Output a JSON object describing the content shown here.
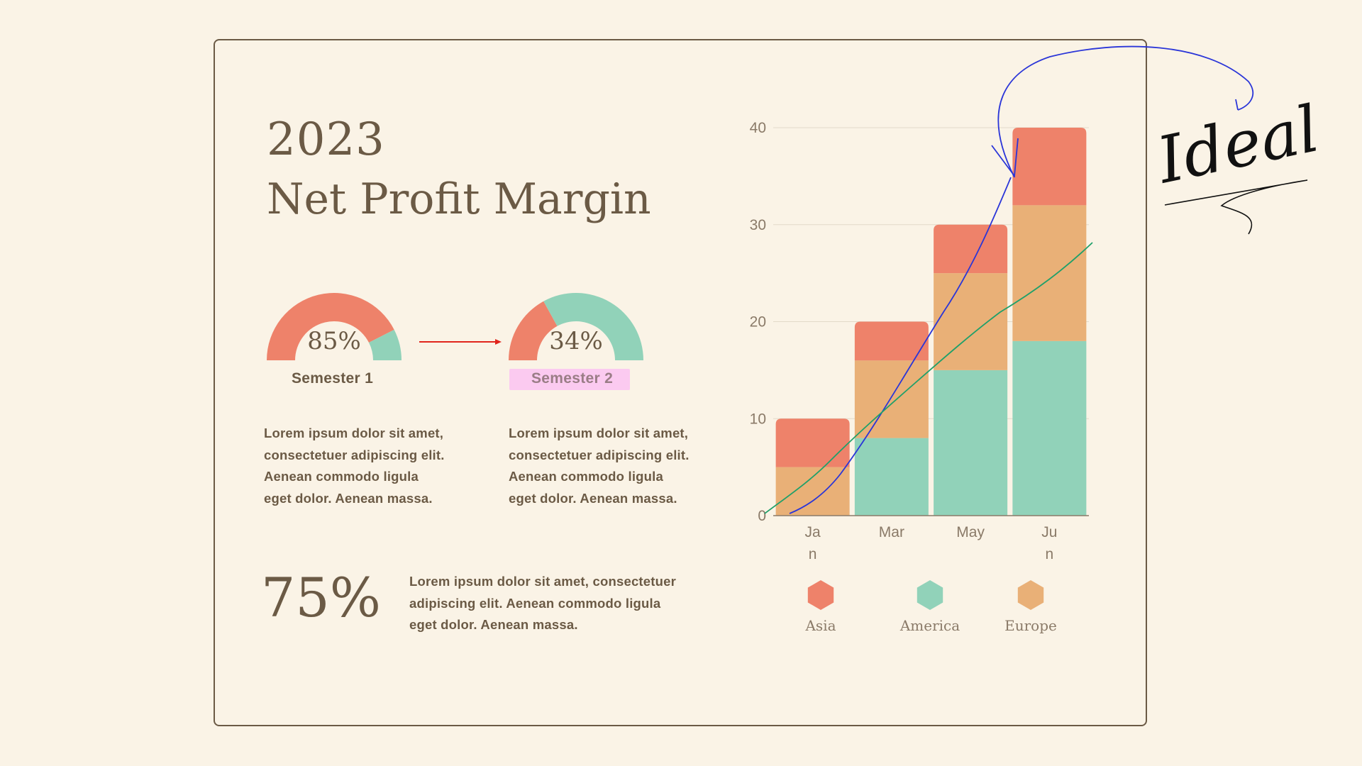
{
  "heading": {
    "year": "2023",
    "title": "Net Profit Margin"
  },
  "gauges": [
    {
      "value_label": "85%",
      "value": 85,
      "label": "Semester 1"
    },
    {
      "value_label": "34%",
      "value": 34,
      "label": "Semester 2"
    }
  ],
  "paragraphs": {
    "p1": [
      "Lorem ipsum dolor sit amet,",
      "consectetuer adipiscing elit.",
      "Aenean commodo ligula",
      "eget dolor. Aenean massa."
    ],
    "p2": [
      "Lorem ipsum dolor sit amet,",
      "consectetuer adipiscing elit.",
      "Aenean commodo ligula",
      "eget dolor. Aenean massa."
    ],
    "p3": [
      "Lorem ipsum dolor sit amet, consectetuer",
      "adipiscing elit. Aenean commodo ligula",
      "eget dolor. Aenean massa."
    ]
  },
  "big_stat": "75%",
  "annotation": "Ideal",
  "colors": {
    "asia": "#ee826a",
    "america": "#91d2b9",
    "europe": "#e9b077",
    "text": "#6b5a45",
    "green_line": "#1fa06a",
    "blue_line": "#2a35d8",
    "highlight": "#fbcaf0"
  },
  "chart_data": {
    "type": "bar",
    "stacked": true,
    "categories": [
      "Jan",
      "Mar",
      "May",
      "Jun"
    ],
    "category_labels": [
      [
        "Ja",
        "n"
      ],
      [
        "Mar"
      ],
      [
        "May"
      ],
      [
        "Ju",
        "n"
      ]
    ],
    "series": [
      {
        "name": "America",
        "values": [
          0,
          8,
          15,
          18
        ]
      },
      {
        "name": "Europe",
        "values": [
          5,
          8,
          10,
          14
        ]
      },
      {
        "name": "Asia",
        "values": [
          5,
          4,
          5,
          8
        ]
      }
    ],
    "yticks": [
      0,
      10,
      20,
      30,
      40
    ],
    "ylim": [
      0,
      40
    ],
    "grid": true,
    "legend": [
      "Asia",
      "America",
      "Europe"
    ],
    "legend_position": "bottom"
  }
}
